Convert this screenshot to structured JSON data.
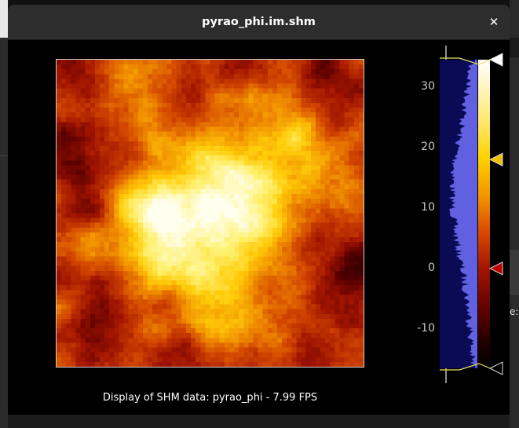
{
  "window": {
    "title": "pyrao_phi.im.shm",
    "close_icon": "close-icon"
  },
  "display": {
    "caption": "Display of SHM data: pyrao_phi - 7.99 FPS",
    "colormap": "heat",
    "grid_size": 64
  },
  "colorbar": {
    "tick_labels": [
      "30",
      "20",
      "10",
      "0",
      "-10"
    ],
    "tick_values": [
      30,
      20,
      10,
      0,
      -10
    ],
    "range": [
      -16.5,
      34.5
    ],
    "marker_values": {
      "max": 34.5,
      "mid_high": 18,
      "mid_low": 0,
      "min": -16.5
    },
    "colors": {
      "marker_max": "#ffffff",
      "marker_mid_high": "#f0c000",
      "marker_mid_low": "#c00000",
      "marker_min": "#000000",
      "histogram": "#6060e0",
      "histogram_bg": "#0a0a55",
      "marker_line": "#e8e060"
    }
  },
  "background": {
    "right_edge_text": "e:"
  }
}
